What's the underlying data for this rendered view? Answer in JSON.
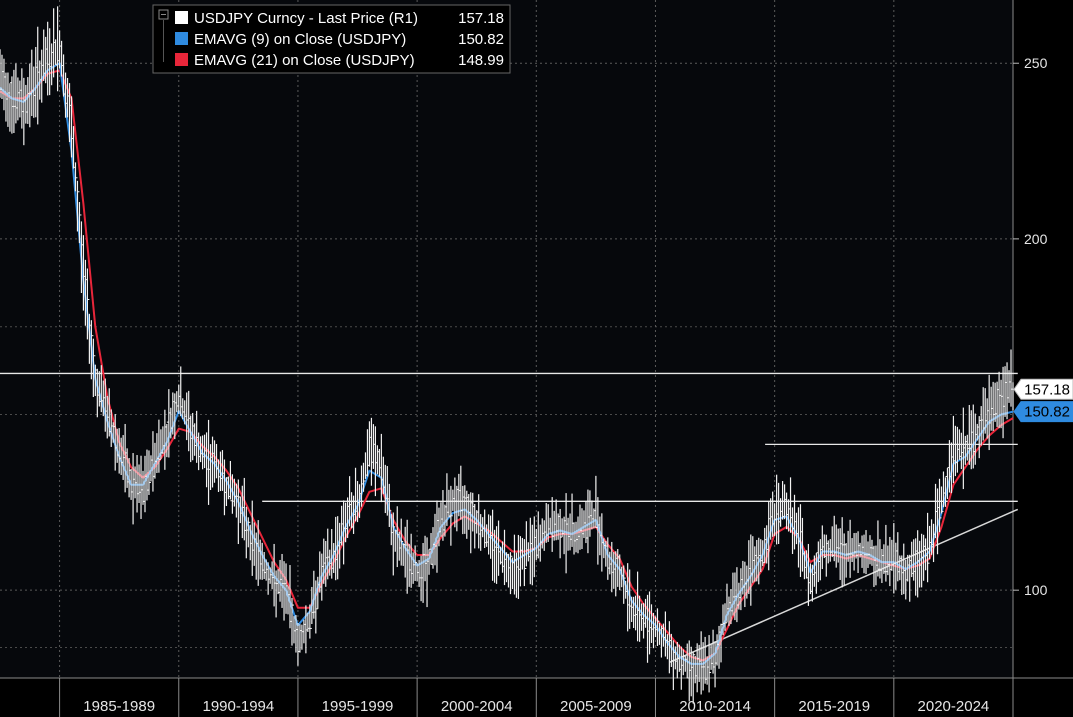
{
  "chart_data": {
    "type": "line",
    "legend": {
      "placement": "top-left",
      "entries": [
        {
          "label": "USDJPY Curncy - Last Price (R1)",
          "value": "157.18",
          "color": "#ffffff"
        },
        {
          "label": "EMAVG (9)  on Close (USDJPY)",
          "value": "150.82",
          "color": "#2f8be0"
        },
        {
          "label": "EMAVG (21)  on Close (USDJPY)",
          "value": "148.99",
          "color": "#e8263a"
        }
      ]
    },
    "y_axis": {
      "position": "right",
      "ticks": [
        "250",
        "200",
        "100"
      ],
      "range": [
        75,
        268
      ]
    },
    "x_axis": {
      "ticks": [
        "1985-1989",
        "1990-1994",
        "1995-1999",
        "2000-2004",
        "2005-2009",
        "2010-2014",
        "2015-2019",
        "2020-2024"
      ],
      "range": [
        1982.5,
        2025.0
      ]
    },
    "last_value_badges": [
      {
        "text": "157.18",
        "fill": "#ffffff",
        "text_color": "#000000"
      },
      {
        "text": "150.82",
        "fill": "#2f8be0",
        "text_color": "#000000"
      }
    ],
    "x": [
      1982.5,
      1983.0,
      1983.5,
      1984.0,
      1984.5,
      1985.0,
      1985.5,
      1986.0,
      1986.5,
      1987.0,
      1987.5,
      1988.0,
      1988.5,
      1989.0,
      1989.5,
      1990.0,
      1990.5,
      1991.0,
      1991.5,
      1992.0,
      1992.5,
      1993.0,
      1993.5,
      1994.0,
      1994.5,
      1995.0,
      1995.5,
      1996.0,
      1996.5,
      1997.0,
      1997.5,
      1998.0,
      1998.5,
      1999.0,
      1999.5,
      2000.0,
      2000.5,
      2001.0,
      2001.5,
      2002.0,
      2002.5,
      2003.0,
      2003.5,
      2004.0,
      2004.5,
      2005.0,
      2005.5,
      2006.0,
      2006.5,
      2007.0,
      2007.5,
      2008.0,
      2008.5,
      2009.0,
      2009.5,
      2010.0,
      2010.5,
      2011.0,
      2011.5,
      2012.0,
      2012.5,
      2013.0,
      2013.5,
      2014.0,
      2014.5,
      2015.0,
      2015.5,
      2016.0,
      2016.5,
      2017.0,
      2017.5,
      2018.0,
      2018.5,
      2019.0,
      2019.5,
      2020.0,
      2020.5,
      2021.0,
      2021.5,
      2022.0,
      2022.5,
      2023.0,
      2023.5,
      2024.0,
      2024.5,
      2025.0
    ],
    "series": [
      {
        "name": "USDJPY Curncy - Last Price (R1)",
        "color": "#ffffff",
        "values": [
          245,
          240,
          238,
          245,
          250,
          255,
          230,
          190,
          160,
          150,
          140,
          130,
          128,
          138,
          145,
          155,
          145,
          138,
          136,
          130,
          125,
          115,
          108,
          102,
          100,
          85,
          92,
          105,
          110,
          120,
          125,
          140,
          135,
          115,
          110,
          105,
          108,
          120,
          125,
          125,
          120,
          115,
          110,
          106,
          110,
          112,
          118,
          118,
          116,
          118,
          122,
          108,
          105,
          95,
          92,
          90,
          84,
          80,
          78,
          78,
          80,
          95,
          100,
          105,
          110,
          122,
          124,
          115,
          102,
          112,
          112,
          110,
          112,
          110,
          108,
          109,
          105,
          108,
          112,
          125,
          140,
          140,
          145,
          150,
          155,
          157.18
        ]
      },
      {
        "name": "EMAVG (9)  on Close (USDJPY)",
        "color": "#2f8be0",
        "values": [
          243,
          240,
          239,
          243,
          248,
          250,
          225,
          188,
          160,
          148,
          138,
          130,
          130,
          136,
          142,
          151,
          145,
          139,
          136,
          131,
          125,
          117,
          110,
          104,
          100,
          90,
          94,
          104,
          110,
          118,
          124,
          134,
          132,
          118,
          112,
          107,
          109,
          118,
          122,
          123,
          120,
          116,
          112,
          108,
          110,
          112,
          116,
          117,
          116,
          118,
          120,
          110,
          106,
          97,
          93,
          90,
          85,
          81,
          79,
          79,
          82,
          93,
          99,
          104,
          110,
          120,
          121,
          115,
          105,
          111,
          111,
          110,
          111,
          110,
          108,
          108,
          106,
          108,
          111,
          122,
          136,
          138,
          143,
          148,
          150,
          150.82
        ]
      },
      {
        "name": "EMAVG (21)  on Close (USDJPY)",
        "color": "#e8263a",
        "values": [
          242,
          240,
          240,
          243,
          247,
          248,
          240,
          210,
          175,
          155,
          142,
          135,
          132,
          135,
          140,
          146,
          145,
          141,
          138,
          134,
          129,
          122,
          115,
          108,
          103,
          95,
          95,
          102,
          108,
          115,
          121,
          128,
          129,
          120,
          114,
          110,
          110,
          115,
          119,
          121,
          119,
          117,
          114,
          111,
          111,
          112,
          115,
          116,
          116,
          117,
          118,
          113,
          109,
          101,
          96,
          92,
          88,
          84,
          81,
          80,
          82,
          89,
          96,
          101,
          106,
          116,
          118,
          115,
          108,
          110,
          110,
          109,
          110,
          109,
          108,
          107,
          106,
          107,
          109,
          118,
          130,
          135,
          140,
          144,
          147,
          148.99
        ]
      }
    ],
    "reference_lines": [
      {
        "kind": "horizontal",
        "y": 161.7,
        "x_from": 1982.3,
        "x_to": 2025.2
      },
      {
        "kind": "horizontal",
        "y": 141.5,
        "x_from": 2014.6,
        "x_to": 2025.2
      },
      {
        "kind": "horizontal",
        "y": 125.3,
        "x_from": 1993.5,
        "x_to": 2025.2
      },
      {
        "kind": "trend",
        "x_from": 2010.6,
        "y_from": 79.5,
        "x_to": 2025.2,
        "y_to": 123
      }
    ]
  }
}
